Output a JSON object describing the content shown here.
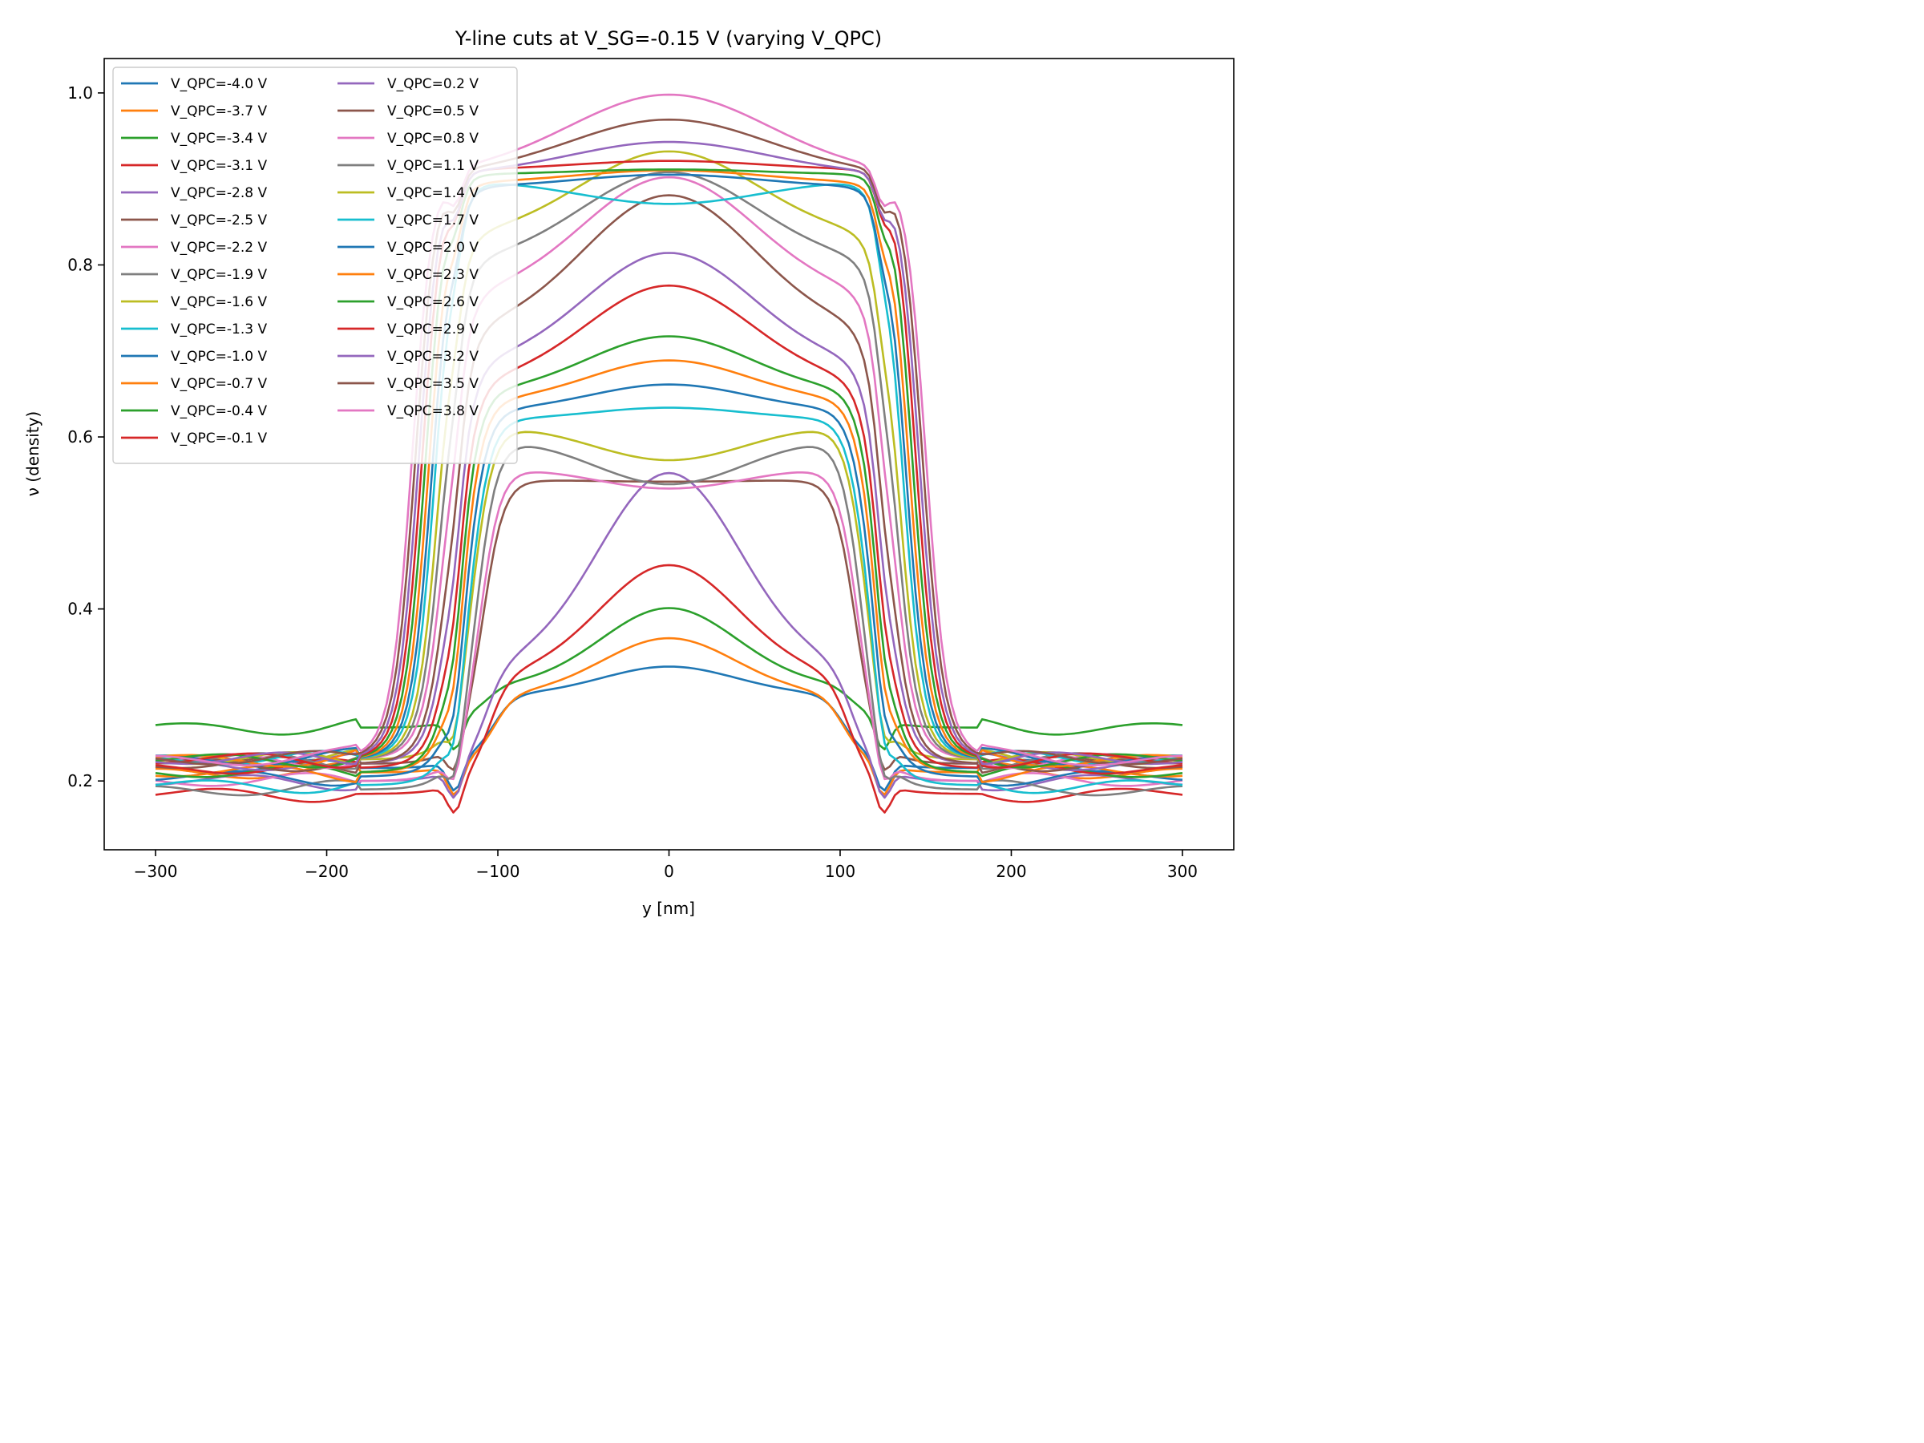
{
  "chart_data": {
    "type": "line",
    "title": "Y-line cuts at V_SG=-0.15 V (varying V_QPC)",
    "xlabel": "y [nm]",
    "ylabel": "ν (density)",
    "xlim": [
      -330,
      330
    ],
    "ylim": [
      0.12,
      1.04
    ],
    "xticks": [
      -300,
      -200,
      -100,
      0,
      100,
      200,
      300
    ],
    "xtick_labels": [
      "−300",
      "−200",
      "−100",
      "0",
      "100",
      "200",
      "300"
    ],
    "yticks": [
      0.2,
      0.4,
      0.6,
      0.8,
      1.0
    ],
    "ytick_labels": [
      "0.2",
      "0.4",
      "0.6",
      "0.8",
      "1.0"
    ],
    "grid": false,
    "legend": {
      "placement": "top-left",
      "columns": 2
    },
    "series": [
      {
        "name": "V_QPC=-4.0 V",
        "color": "#1f77b4",
        "peak": 0.333,
        "edge": 0.215,
        "shoulder": 0.3,
        "width": 100
      },
      {
        "name": "V_QPC=-3.7 V",
        "color": "#ff7f0e",
        "peak": 0.366,
        "edge": 0.21,
        "shoulder": 0.3,
        "width": 100
      },
      {
        "name": "V_QPC=-3.4 V",
        "color": "#2ca02c",
        "peak": 0.401,
        "edge": 0.262,
        "shoulder": 0.31,
        "width": 102
      },
      {
        "name": "V_QPC=-3.1 V",
        "color": "#d62728",
        "peak": 0.451,
        "edge": 0.185,
        "shoulder": 0.32,
        "width": 104
      },
      {
        "name": "V_QPC=-2.8 V",
        "color": "#9467bd",
        "peak": 0.558,
        "edge": 0.2,
        "shoulder": 0.33,
        "width": 106
      },
      {
        "name": "V_QPC=-2.5 V",
        "color": "#8c564b",
        "peak": 0.548,
        "edge": 0.22,
        "shoulder": 0.55,
        "width": 108
      },
      {
        "name": "V_QPC=-2.2 V",
        "color": "#e377c2",
        "peak": 0.54,
        "edge": 0.2,
        "shoulder": 0.565,
        "width": 110
      },
      {
        "name": "V_QPC=-1.9 V",
        "color": "#7f7f7f",
        "peak": 0.545,
        "edge": 0.19,
        "shoulder": 0.6,
        "width": 112
      },
      {
        "name": "V_QPC=-1.6 V",
        "color": "#bcbd22",
        "peak": 0.573,
        "edge": 0.225,
        "shoulder": 0.615,
        "width": 114
      },
      {
        "name": "V_QPC=-1.3 V",
        "color": "#17becf",
        "peak": 0.634,
        "edge": 0.195,
        "shoulder": 0.62,
        "width": 116
      },
      {
        "name": "V_QPC=-1.0 V",
        "color": "#1f77b4",
        "peak": 0.661,
        "edge": 0.205,
        "shoulder": 0.63,
        "width": 118
      },
      {
        "name": "V_QPC=-0.7 V",
        "color": "#ff7f0e",
        "peak": 0.689,
        "edge": 0.21,
        "shoulder": 0.64,
        "width": 120
      },
      {
        "name": "V_QPC=-0.4 V",
        "color": "#2ca02c",
        "peak": 0.717,
        "edge": 0.21,
        "shoulder": 0.65,
        "width": 122
      },
      {
        "name": "V_QPC=-0.1 V",
        "color": "#d62728",
        "peak": 0.776,
        "edge": 0.215,
        "shoulder": 0.66,
        "width": 124
      },
      {
        "name": "V_QPC=0.2 V",
        "color": "#9467bd",
        "peak": 0.814,
        "edge": 0.22,
        "shoulder": 0.68,
        "width": 126
      },
      {
        "name": "V_QPC=0.5 V",
        "color": "#8c564b",
        "peak": 0.881,
        "edge": 0.22,
        "shoulder": 0.72,
        "width": 128
      },
      {
        "name": "V_QPC=0.8 V",
        "color": "#e377c2",
        "peak": 0.902,
        "edge": 0.225,
        "shoulder": 0.76,
        "width": 130
      },
      {
        "name": "V_QPC=1.1 V",
        "color": "#7f7f7f",
        "peak": 0.908,
        "edge": 0.225,
        "shoulder": 0.8,
        "width": 132
      },
      {
        "name": "V_QPC=1.4 V",
        "color": "#bcbd22",
        "peak": 0.932,
        "edge": 0.225,
        "shoulder": 0.83,
        "width": 134
      },
      {
        "name": "V_QPC=1.7 V",
        "color": "#17becf",
        "peak": 0.871,
        "edge": 0.225,
        "shoulder": 0.9,
        "width": 136
      },
      {
        "name": "V_QPC=2.0 V",
        "color": "#1f77b4",
        "peak": 0.905,
        "edge": 0.225,
        "shoulder": 0.89,
        "width": 138
      },
      {
        "name": "V_QPC=2.3 V",
        "color": "#ff7f0e",
        "peak": 0.91,
        "edge": 0.225,
        "shoulder": 0.895,
        "width": 140
      },
      {
        "name": "V_QPC=2.6 V",
        "color": "#2ca02c",
        "peak": 0.911,
        "edge": 0.225,
        "shoulder": 0.905,
        "width": 142
      },
      {
        "name": "V_QPC=2.9 V",
        "color": "#d62728",
        "peak": 0.921,
        "edge": 0.225,
        "shoulder": 0.91,
        "width": 144
      },
      {
        "name": "V_QPC=3.2 V",
        "color": "#9467bd",
        "peak": 0.943,
        "edge": 0.225,
        "shoulder": 0.905,
        "width": 146
      },
      {
        "name": "V_QPC=3.5 V",
        "color": "#8c564b",
        "peak": 0.969,
        "edge": 0.225,
        "shoulder": 0.905,
        "width": 148
      },
      {
        "name": "V_QPC=3.8 V",
        "color": "#e377c2",
        "peak": 0.998,
        "edge": 0.225,
        "shoulder": 0.905,
        "width": 150
      }
    ]
  }
}
